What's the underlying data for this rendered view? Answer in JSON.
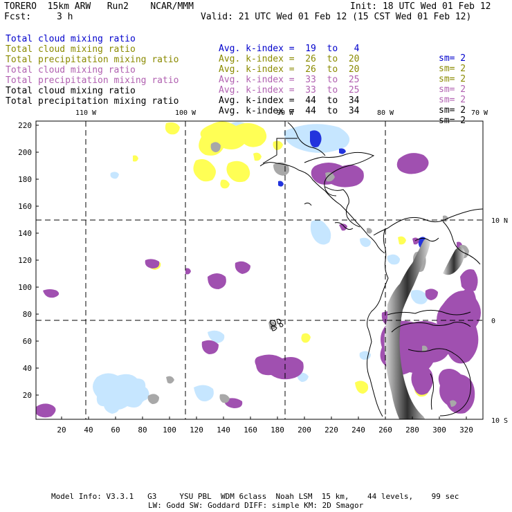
{
  "header": {
    "title_left": "TORERO  15km ARW   Run2    NCAR/MMM",
    "init": "Init: 18 UTC Wed 01 Feb 12",
    "fcst_label": "Fcst:",
    "fcst_value": "3 h",
    "valid": "Valid: 21 UTC Wed 01 Feb 12 (15 CST Wed 01 Feb 12)"
  },
  "legend": [
    {
      "field": "Total cloud mixing ratio",
      "kidx": "Avg. k-index =  19  to   4",
      "sm": "sm= 2",
      "color": "#0000cc"
    },
    {
      "field": "Total cloud mixing ratio",
      "kidx": "Avg. k-index =  26  to  20",
      "sm": "sm= 2",
      "color": "#8a8a00"
    },
    {
      "field": "Total precipitation mixing ratio",
      "kidx": "Avg. k-index =  26  to  20",
      "sm": "sm= 2",
      "color": "#8a8a00"
    },
    {
      "field": "Total cloud mixing ratio",
      "kidx": "Avg. k-index =  33  to  25",
      "sm": "sm= 2",
      "color": "#b060b0"
    },
    {
      "field": "Total precipitation mixing ratio",
      "kidx": "Avg. k-index =  33  to  25",
      "sm": "sm= 2",
      "color": "#b060b0"
    },
    {
      "field": "Total cloud mixing ratio",
      "kidx": "Avg. k-index =  44  to  34",
      "sm": "sm= 2",
      "color": "#000000"
    },
    {
      "field": "Total precipitation mixing ratio",
      "kidx": "Avg. k-index =  44  to  34",
      "sm": "sm= 2",
      "color": "#000000"
    }
  ],
  "map": {
    "top_lon_labels": [
      "110 W",
      "100 W",
      "90 W",
      "80 W",
      "70 W"
    ],
    "right_lat_labels": [
      "10 N",
      "0",
      "10 S"
    ],
    "left_ticks": [
      "220",
      "200",
      "180",
      "160",
      "140",
      "120",
      "100",
      "80",
      "60",
      "40",
      "20"
    ],
    "bottom_ticks": [
      "20",
      "40",
      "60",
      "80",
      "100",
      "120",
      "140",
      "160",
      "180",
      "200",
      "220",
      "240",
      "260",
      "280",
      "300",
      "320"
    ],
    "colors": {
      "blue": "#1a2ee0",
      "lightblue": "#bfe3ff",
      "yellow": "#ffff55",
      "purple": "#a050b0",
      "gray": "#a8a8a8",
      "darkgray": "#555555"
    }
  },
  "footer": {
    "line1": "Model Info: V3.3.1   G3     YSU PBL  WDM 6class  Noah LSM  15 km,    44 levels,    99 sec",
    "line2": "LW: Godd SW: Goddard DIFF: simple KM: 2D Smagor"
  }
}
